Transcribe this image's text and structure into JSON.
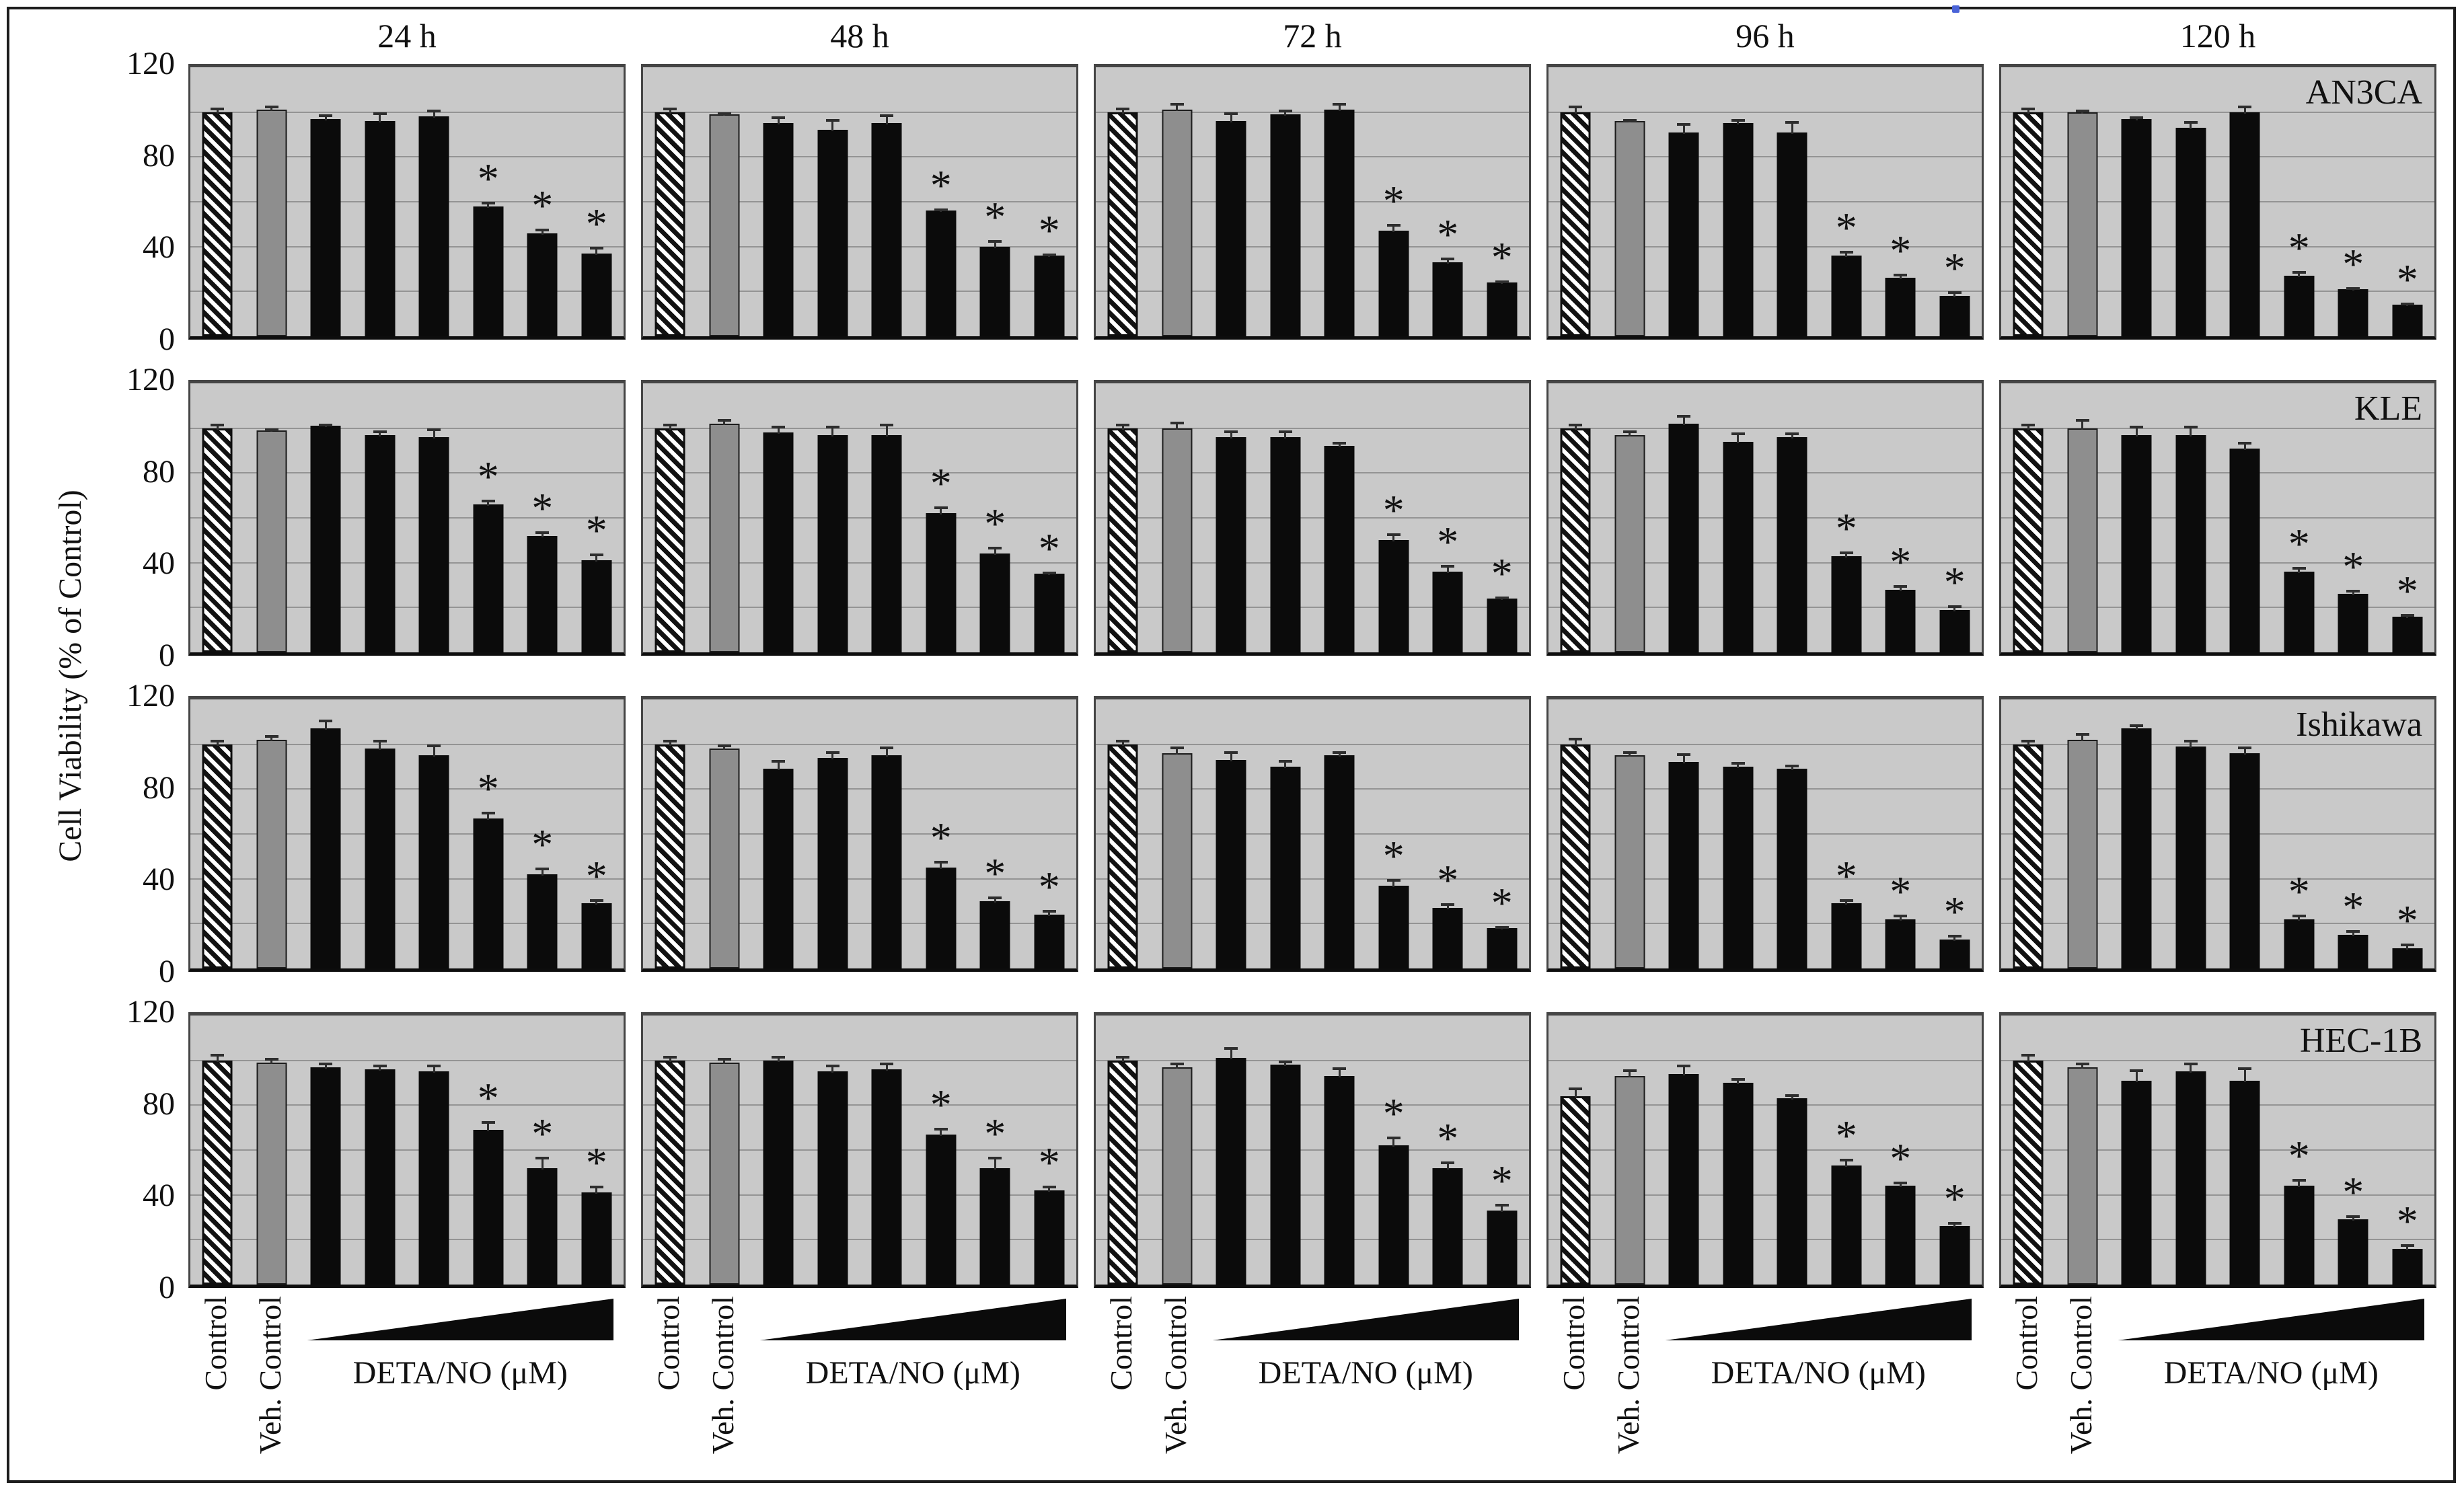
{
  "colors": {
    "panel_bg": "#c9c9c9",
    "gridline": "#949494",
    "panel_border": "#454545",
    "axis": "#0d0d0d",
    "bar_black": "#0b0b0b",
    "bar_gray": "#8e8e8e",
    "hatch_fg": "#121212",
    "hatch_bg": "#ffffff",
    "error_bar": "#2e2e2e",
    "artifact_blue": "#4a63d8"
  },
  "chart_data": {
    "type": "bar",
    "title": "",
    "ylabel": "Cell Viability (% of Control)",
    "ylim": [
      0,
      120
    ],
    "grid": "on",
    "gridline_step": 20,
    "ytick_values": [
      120,
      80,
      40,
      0
    ],
    "ytick_labels": [
      "120",
      "80",
      "40",
      "0"
    ],
    "column_titles": [
      "24 h",
      "48 h",
      "72 h",
      "96 h",
      "120 h"
    ],
    "x_group_labels": [
      "Control",
      "Veh. Control"
    ],
    "dose_axis_label": "DETA/NO (μM)",
    "dose_axis_style": "increasing-black-wedge",
    "bar_styles": [
      "hatched",
      "gray",
      "black",
      "black",
      "black",
      "black",
      "black",
      "black"
    ],
    "bar_series_names": [
      "Control",
      "Veh. Control",
      "DETA/NO dose 1",
      "DETA/NO dose 2",
      "DETA/NO dose 3",
      "DETA/NO dose 4",
      "DETA/NO dose 5",
      "DETA/NO dose 6"
    ],
    "significance_symbol": "*",
    "significant_bar_indices": [
      5,
      6,
      7
    ],
    "legend_position": "none",
    "rows": [
      {
        "cell_line": "AN3CA",
        "panels": [
          {
            "values": [
              100,
              101,
              97,
              96,
              98,
              58,
              46,
              37
            ],
            "errors": [
              2,
              2,
              2,
              4,
              3,
              2,
              2,
              3
            ]
          },
          {
            "values": [
              100,
              99,
              95,
              92,
              95,
              56,
              40,
              36
            ],
            "errors": [
              2,
              1,
              3,
              5,
              4,
              1,
              3,
              1
            ]
          },
          {
            "values": [
              100,
              101,
              96,
              99,
              101,
              47,
              33,
              24
            ],
            "errors": [
              2,
              3,
              4,
              2,
              3,
              3,
              2,
              1
            ]
          },
          {
            "values": [
              100,
              96,
              91,
              95,
              91,
              36,
              26,
              18
            ],
            "errors": [
              3,
              1,
              4,
              2,
              5,
              2,
              2,
              2
            ]
          },
          {
            "values": [
              100,
              100,
              97,
              93,
              100,
              27,
              21,
              14
            ],
            "errors": [
              2,
              1,
              1,
              3,
              3,
              2,
              1,
              1
            ]
          }
        ]
      },
      {
        "cell_line": "KLE",
        "panels": [
          {
            "values": [
              100,
              99,
              101,
              97,
              96,
              66,
              52,
              41
            ],
            "errors": [
              2,
              1,
              1,
              2,
              4,
              2,
              2,
              3
            ]
          },
          {
            "values": [
              100,
              102,
              98,
              97,
              97,
              62,
              44,
              35
            ],
            "errors": [
              2,
              2,
              3,
              4,
              5,
              3,
              3,
              1
            ]
          },
          {
            "values": [
              100,
              100,
              96,
              96,
              92,
              50,
              36,
              24
            ],
            "errors": [
              2,
              3,
              3,
              3,
              2,
              3,
              3,
              1
            ]
          },
          {
            "values": [
              100,
              97,
              102,
              94,
              96,
              43,
              28,
              19
            ],
            "errors": [
              2,
              2,
              4,
              4,
              2,
              2,
              2,
              2
            ]
          },
          {
            "values": [
              100,
              100,
              97,
              97,
              91,
              36,
              26,
              16
            ],
            "errors": [
              2,
              4,
              4,
              4,
              3,
              2,
              2,
              1
            ]
          }
        ]
      },
      {
        "cell_line": "Ishikawa",
        "panels": [
          {
            "values": [
              100,
              102,
              107,
              98,
              95,
              67,
              42,
              29
            ],
            "errors": [
              2,
              2,
              4,
              4,
              5,
              3,
              3,
              2
            ]
          },
          {
            "values": [
              100,
              98,
              89,
              94,
              95,
              45,
              30,
              24
            ],
            "errors": [
              2,
              2,
              4,
              3,
              4,
              3,
              2,
              2
            ]
          },
          {
            "values": [
              100,
              96,
              93,
              90,
              95,
              37,
              27,
              18
            ],
            "errors": [
              2,
              3,
              4,
              3,
              2,
              3,
              2,
              1
            ]
          },
          {
            "values": [
              100,
              95,
              92,
              90,
              89,
              29,
              22,
              13
            ],
            "errors": [
              3,
              2,
              4,
              2,
              2,
              2,
              2,
              2
            ]
          },
          {
            "values": [
              100,
              102,
              107,
              99,
              96,
              22,
              15,
              9
            ],
            "errors": [
              2,
              3,
              2,
              3,
              3,
              2,
              2,
              2
            ]
          }
        ]
      },
      {
        "cell_line": "HEC-1B",
        "panels": [
          {
            "values": [
              100,
              99,
              97,
              96,
              95,
              69,
              52,
              41
            ],
            "errors": [
              3,
              2,
              2,
              2,
              3,
              4,
              5,
              3
            ]
          },
          {
            "values": [
              100,
              99,
              100,
              95,
              96,
              67,
              52,
              42
            ],
            "errors": [
              2,
              2,
              2,
              3,
              3,
              3,
              5,
              2
            ]
          },
          {
            "values": [
              100,
              97,
              101,
              98,
              93,
              62,
              52,
              33
            ],
            "errors": [
              2,
              2,
              5,
              2,
              4,
              4,
              3,
              3
            ]
          },
          {
            "values": [
              84,
              93,
              94,
              90,
              83,
              53,
              44,
              26
            ],
            "errors": [
              4,
              3,
              4,
              2,
              2,
              3,
              2,
              2
            ]
          },
          {
            "values": [
              100,
              97,
              91,
              95,
              91,
              44,
              29,
              16
            ],
            "errors": [
              3,
              2,
              5,
              4,
              6,
              3,
              2,
              2
            ]
          }
        ]
      }
    ]
  }
}
